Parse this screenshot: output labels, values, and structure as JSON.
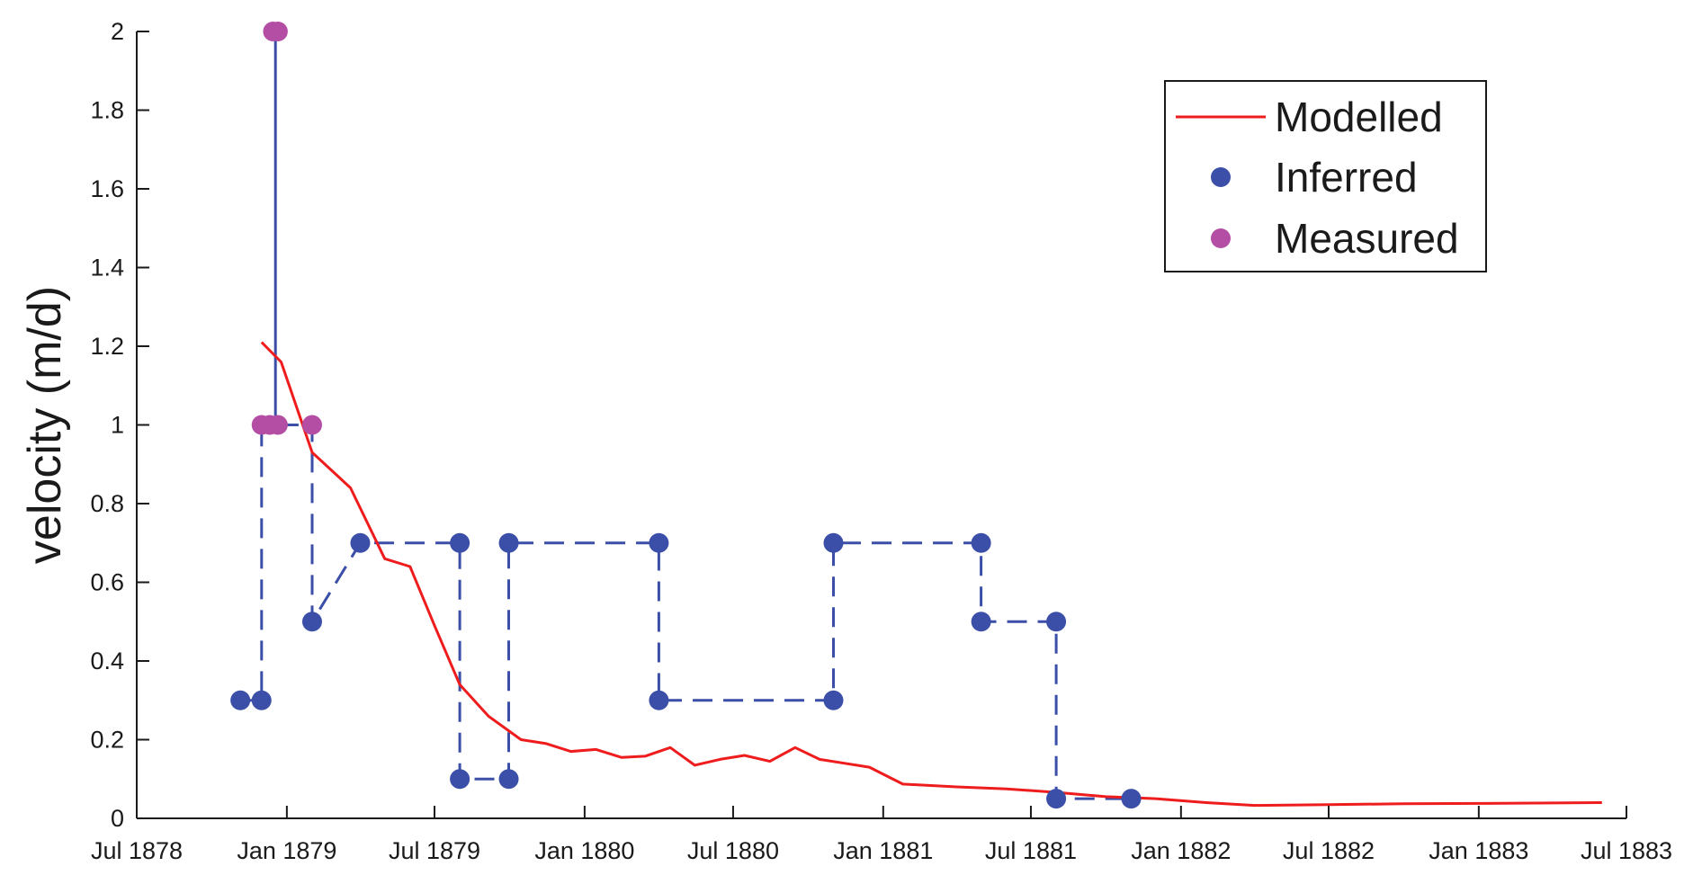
{
  "chart_data": {
    "type": "line",
    "title": "",
    "xlabel": "",
    "ylabel": "velocity (m/d)",
    "xlim": [
      "1878-07",
      "1883-07"
    ],
    "ylim": [
      0,
      2
    ],
    "x_ticks": [
      "Jul 1878",
      "Jan 1879",
      "Jul 1879",
      "Jan 1880",
      "Jul 1880",
      "Jan 1881",
      "Jul 1881",
      "Jan 1882",
      "Jul 1882",
      "Jan 1883",
      "Jul 1883"
    ],
    "y_ticks": [
      "0",
      "0.2",
      "0.4",
      "0.6",
      "0.8",
      "1",
      "1.2",
      "1.4",
      "1.6",
      "1.8",
      "2"
    ],
    "grid": false,
    "legend_position": "top-right",
    "series": [
      {
        "name": "Modelled",
        "style": "solid-line",
        "color": "#ee1c1c",
        "points": [
          {
            "x": "1878-12-01",
            "y": 1.21
          },
          {
            "x": "1878-12-25",
            "y": 1.16
          },
          {
            "x": "1879-02-01",
            "y": 0.93
          },
          {
            "x": "1879-03-20",
            "y": 0.84
          },
          {
            "x": "1879-05-01",
            "y": 0.66
          },
          {
            "x": "1879-06-01",
            "y": 0.64
          },
          {
            "x": "1879-07-01",
            "y": 0.49
          },
          {
            "x": "1879-08-01",
            "y": 0.34
          },
          {
            "x": "1879-09-05",
            "y": 0.26
          },
          {
            "x": "1879-10-15",
            "y": 0.2
          },
          {
            "x": "1879-11-15",
            "y": 0.19
          },
          {
            "x": "1879-12-15",
            "y": 0.17
          },
          {
            "x": "1880-01-15",
            "y": 0.175
          },
          {
            "x": "1880-02-15",
            "y": 0.155
          },
          {
            "x": "1880-03-15",
            "y": 0.158
          },
          {
            "x": "1880-04-15",
            "y": 0.18
          },
          {
            "x": "1880-05-15",
            "y": 0.135
          },
          {
            "x": "1880-06-15",
            "y": 0.15
          },
          {
            "x": "1880-07-15",
            "y": 0.16
          },
          {
            "x": "1880-08-15",
            "y": 0.145
          },
          {
            "x": "1880-09-15",
            "y": 0.18
          },
          {
            "x": "1880-10-15",
            "y": 0.15
          },
          {
            "x": "1880-11-15",
            "y": 0.14
          },
          {
            "x": "1880-12-15",
            "y": 0.13
          },
          {
            "x": "1881-01-25",
            "y": 0.087
          },
          {
            "x": "1881-04-01",
            "y": 0.08
          },
          {
            "x": "1881-06-01",
            "y": 0.075
          },
          {
            "x": "1881-08-01",
            "y": 0.066
          },
          {
            "x": "1881-10-01",
            "y": 0.055
          },
          {
            "x": "1881-12-01",
            "y": 0.05
          },
          {
            "x": "1882-02-01",
            "y": 0.04
          },
          {
            "x": "1882-04-01",
            "y": 0.033
          },
          {
            "x": "1882-07-01",
            "y": 0.035
          },
          {
            "x": "1882-10-01",
            "y": 0.037
          },
          {
            "x": "1883-01-01",
            "y": 0.038
          },
          {
            "x": "1883-04-01",
            "y": 0.039
          },
          {
            "x": "1883-06-01",
            "y": 0.04
          }
        ]
      },
      {
        "name": "Inferred",
        "style": "dashed-line-with-markers",
        "color": "#3b4fa8",
        "points": [
          {
            "x": "1878-11-05",
            "y": 0.3
          },
          {
            "x": "1878-12-01",
            "y": 0.3
          },
          {
            "x": "1878-12-01",
            "y": 1
          },
          {
            "x": "1878-12-18",
            "y": 1
          },
          {
            "x": "1878-12-18",
            "y": 2
          },
          {
            "x": "1878-12-18",
            "y": 1
          },
          {
            "x": "1879-02-01",
            "y": 1
          },
          {
            "x": "1879-02-01",
            "y": 0.5
          },
          {
            "x": "1879-04-01",
            "y": 0.7
          },
          {
            "x": "1879-08-01",
            "y": 0.7
          },
          {
            "x": "1879-08-01",
            "y": 0.1
          },
          {
            "x": "1879-09-30",
            "y": 0.1
          },
          {
            "x": "1879-09-30",
            "y": 0.7
          },
          {
            "x": "1880-04-01",
            "y": 0.7
          },
          {
            "x": "1880-04-01",
            "y": 0.3
          },
          {
            "x": "1880-11-01",
            "y": 0.3
          },
          {
            "x": "1880-11-01",
            "y": 0.7
          },
          {
            "x": "1881-05-01",
            "y": 0.7
          },
          {
            "x": "1881-05-01",
            "y": 0.5
          },
          {
            "x": "1881-08-01",
            "y": 0.5
          },
          {
            "x": "1881-08-01",
            "y": 0.05
          },
          {
            "x": "1881-11-01",
            "y": 0.05
          }
        ],
        "markers": [
          {
            "x": "1878-11-05",
            "y": 0.3
          },
          {
            "x": "1878-12-01",
            "y": 0.3
          },
          {
            "x": "1879-02-01",
            "y": 0.5
          },
          {
            "x": "1879-04-01",
            "y": 0.7
          },
          {
            "x": "1879-08-01",
            "y": 0.7
          },
          {
            "x": "1879-08-01",
            "y": 0.1
          },
          {
            "x": "1879-09-30",
            "y": 0.1
          },
          {
            "x": "1879-09-30",
            "y": 0.7
          },
          {
            "x": "1880-04-01",
            "y": 0.7
          },
          {
            "x": "1880-04-01",
            "y": 0.3
          },
          {
            "x": "1880-11-01",
            "y": 0.3
          },
          {
            "x": "1880-11-01",
            "y": 0.7
          },
          {
            "x": "1881-05-01",
            "y": 0.7
          },
          {
            "x": "1881-05-01",
            "y": 0.5
          },
          {
            "x": "1881-08-01",
            "y": 0.5
          },
          {
            "x": "1881-08-01",
            "y": 0.05
          },
          {
            "x": "1881-11-01",
            "y": 0.05
          }
        ]
      },
      {
        "name": "Measured",
        "style": "markers",
        "color": "#b44ea4",
        "points": [
          {
            "x": "1878-12-01",
            "y": 1
          },
          {
            "x": "1878-12-11",
            "y": 1
          },
          {
            "x": "1878-12-21",
            "y": 1
          },
          {
            "x": "1879-02-01",
            "y": 1
          },
          {
            "x": "1878-12-15",
            "y": 2
          },
          {
            "x": "1878-12-21",
            "y": 2
          }
        ]
      }
    ]
  }
}
